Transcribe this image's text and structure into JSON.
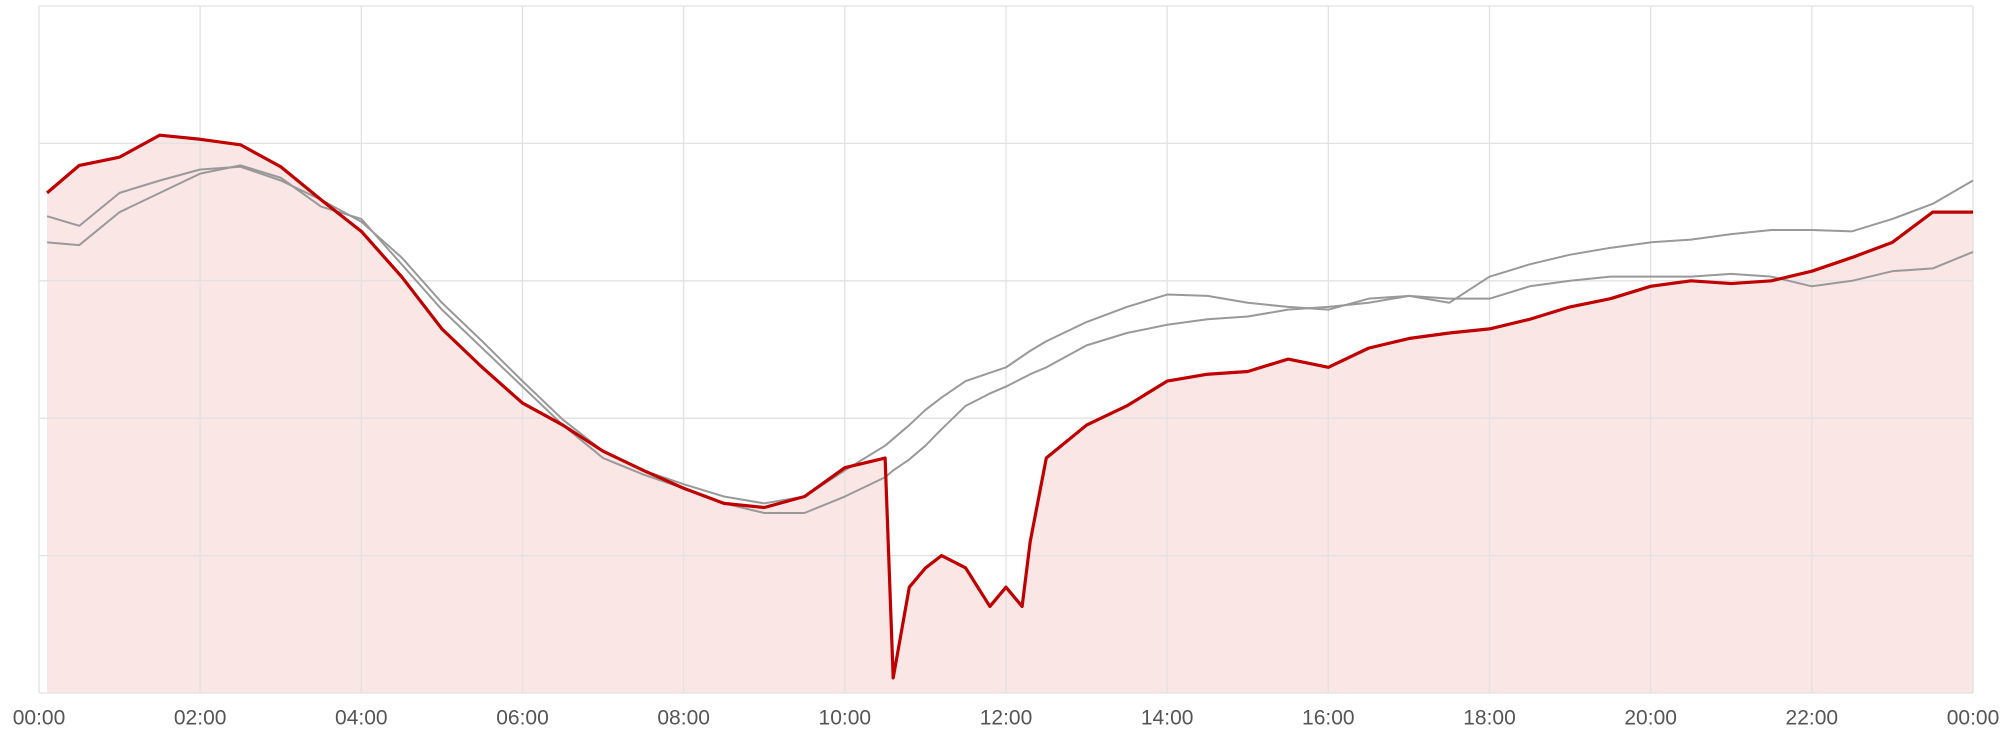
{
  "chart_data": {
    "type": "line",
    "x": [
      0.1,
      0.5,
      1,
      1.5,
      2,
      2.5,
      3,
      3.5,
      4,
      4.5,
      5,
      5.5,
      6,
      6.5,
      7,
      7.5,
      8,
      8.5,
      9,
      9.5,
      10,
      10.5,
      10.6,
      10.8,
      11,
      11.2,
      11.5,
      11.8,
      12,
      12.2,
      12.3,
      12.5,
      13,
      13.5,
      14,
      14.5,
      15,
      15.5,
      16,
      16.5,
      17,
      17.5,
      18,
      18.5,
      19,
      19.5,
      20,
      20.5,
      21,
      21.5,
      22,
      22.5,
      23,
      23.5,
      24
    ],
    "series": [
      {
        "color": "#999999",
        "values": [
          3.47,
          3.4,
          3.64,
          3.73,
          3.81,
          3.83,
          3.73,
          3.59,
          3.43,
          3.17,
          2.84,
          2.56,
          2.27,
          1.99,
          1.76,
          1.62,
          1.52,
          1.43,
          1.38,
          1.43,
          1.62,
          1.8,
          1.85,
          1.95,
          2.06,
          2.15,
          2.27,
          2.33,
          2.37,
          2.45,
          2.49,
          2.56,
          2.7,
          2.81,
          2.9,
          2.89,
          2.84,
          2.81,
          2.79,
          2.87,
          2.89,
          2.84,
          3.03,
          3.12,
          3.19,
          3.24,
          3.28,
          3.3,
          3.34,
          3.37,
          3.37,
          3.36,
          3.45,
          3.56,
          3.73
        ]
      },
      {
        "color": "#999999",
        "values": [
          3.28,
          3.26,
          3.5,
          3.64,
          3.78,
          3.84,
          3.75,
          3.54,
          3.45,
          3.12,
          2.79,
          2.51,
          2.23,
          1.95,
          1.71,
          1.59,
          1.49,
          1.38,
          1.31,
          1.31,
          1.43,
          1.57,
          1.62,
          1.7,
          1.8,
          1.92,
          2.09,
          2.18,
          2.23,
          2.29,
          2.32,
          2.37,
          2.53,
          2.62,
          2.68,
          2.72,
          2.74,
          2.79,
          2.81,
          2.84,
          2.89,
          2.87,
          2.87,
          2.96,
          3.0,
          3.03,
          3.03,
          3.03,
          3.05,
          3.03,
          2.96,
          3.0,
          3.07,
          3.09,
          3.21
        ]
      },
      {
        "color": "#c00000",
        "fill": "#fbe6e6",
        "values": [
          3.64,
          3.84,
          3.9,
          4.06,
          4.03,
          3.99,
          3.83,
          3.59,
          3.36,
          3.03,
          2.65,
          2.37,
          2.11,
          1.95,
          1.76,
          1.62,
          1.49,
          1.38,
          1.35,
          1.43,
          1.64,
          1.71,
          0.11,
          0.77,
          0.91,
          1.0,
          0.91,
          0.63,
          0.77,
          0.63,
          1.1,
          1.71,
          1.95,
          2.09,
          2.27,
          2.32,
          2.34,
          2.43,
          2.37,
          2.51,
          2.58,
          2.62,
          2.65,
          2.72,
          2.81,
          2.87,
          2.96,
          3.0,
          2.98,
          3.0,
          3.07,
          3.17,
          3.28,
          3.5,
          3.5
        ]
      }
    ],
    "xlim": [
      0,
      24
    ],
    "xticks": [
      {
        "value": 0,
        "label": "00:00"
      },
      {
        "value": 2,
        "label": "02:00"
      },
      {
        "value": 4,
        "label": "04:00"
      },
      {
        "value": 6,
        "label": "06:00"
      },
      {
        "value": 8,
        "label": "08:00"
      },
      {
        "value": 10,
        "label": "10:00"
      },
      {
        "value": 12,
        "label": "12:00"
      },
      {
        "value": 14,
        "label": "14:00"
      },
      {
        "value": 16,
        "label": "16:00"
      },
      {
        "value": 18,
        "label": "18:00"
      },
      {
        "value": 20,
        "label": "20:00"
      },
      {
        "value": 22,
        "label": "22:00"
      },
      {
        "value": 24,
        "label": "00:00"
      }
    ],
    "ylim": [
      0,
      5
    ],
    "yticks": [
      0,
      1,
      2,
      3,
      4,
      5
    ],
    "grid": true
  }
}
